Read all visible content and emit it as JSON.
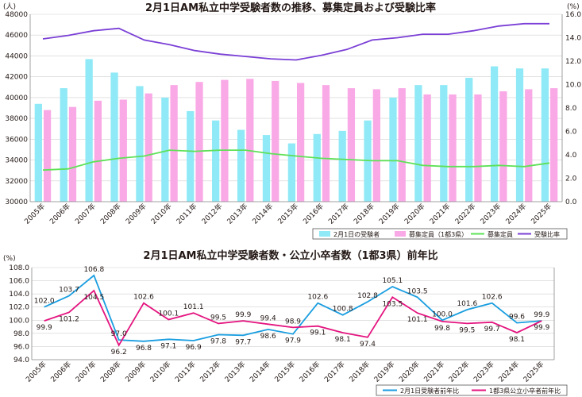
{
  "chart_data": [
    {
      "type": "bar",
      "title": "2月1日AM私立中学受験者数の推移、募集定員および受験比率",
      "y_unit_left": "(人)",
      "y_unit_right": "(%)",
      "categories": [
        "2005年",
        "2006年",
        "2007年",
        "2008年",
        "2009年",
        "2010年",
        "2011年",
        "2012年",
        "2013年",
        "2014年",
        "2015年",
        "2016年",
        "2017年",
        "2018年",
        "2019年",
        "2020年",
        "2021年",
        "2022年",
        "2023年",
        "2024年",
        "2025年"
      ],
      "left_ylim": [
        30000,
        48000
      ],
      "left_yticks": [
        "30000",
        "32000",
        "34000",
        "36000",
        "38000",
        "40000",
        "42000",
        "44000",
        "46000",
        "48000"
      ],
      "right_ylim": [
        0,
        16
      ],
      "right_yticks": [
        "0.0",
        "2.0",
        "4.0",
        "6.0",
        "8.0",
        "10.0",
        "12.0",
        "14.0",
        "16.0"
      ],
      "series": [
        {
          "name": "2月1日の受験者",
          "kind": "bar",
          "axis": "left",
          "color": "#8fe9f6",
          "values": [
            39400,
            40900,
            43700,
            42400,
            41100,
            40000,
            38700,
            37800,
            36900,
            36400,
            35600,
            36500,
            36800,
            37800,
            40000,
            41200,
            41200,
            41900,
            43000,
            42800,
            42800
          ]
        },
        {
          "name": "募集定員（1都3県）",
          "kind": "bar",
          "axis": "left",
          "color": "#f9a9e6",
          "values": [
            38800,
            39100,
            39700,
            39800,
            40400,
            41200,
            41500,
            41700,
            41800,
            41600,
            41400,
            41200,
            40900,
            40800,
            40900,
            40300,
            40300,
            40300,
            40600,
            40800,
            40900
          ]
        },
        {
          "name": "募集定員",
          "kind": "line",
          "axis": "right",
          "color": "#5ee157",
          "values": [
            2.7,
            2.8,
            3.4,
            3.7,
            3.9,
            4.4,
            4.3,
            4.4,
            4.4,
            4.1,
            3.9,
            3.7,
            3.6,
            3.5,
            3.5,
            3.1,
            3.0,
            3.0,
            3.1,
            3.0,
            3.3
          ]
        },
        {
          "name": "受験比率",
          "kind": "line",
          "axis": "right",
          "color": "#7a3fd6",
          "values": [
            13.9,
            14.2,
            14.6,
            14.8,
            13.8,
            13.4,
            12.9,
            12.6,
            12.4,
            12.2,
            12.1,
            12.5,
            13.0,
            13.8,
            14.0,
            14.3,
            14.3,
            14.6,
            15.0,
            15.2,
            15.2
          ]
        }
      ]
    },
    {
      "type": "line",
      "title": "2月1日AM私立中学受験者数・公立小卒者数（1都3県）前年比",
      "y_unit_left": "(%)",
      "categories": [
        "2005年",
        "2006年",
        "2007年",
        "2008年",
        "2009年",
        "2010年",
        "2011年",
        "2012年",
        "2013年",
        "2014年",
        "2015年",
        "2016年",
        "2017年",
        "2018年",
        "2019年",
        "2020年",
        "2021年",
        "2022年",
        "2023年",
        "2024年",
        "2025年"
      ],
      "ylim": [
        94,
        108
      ],
      "yticks": [
        "94.0",
        "96.0",
        "98.0",
        "100.0",
        "102.0",
        "104.0",
        "106.0",
        "108.0"
      ],
      "series": [
        {
          "name": "2月1日受験者前年比",
          "color": "#1a9ee0",
          "values": [
            102.0,
            103.7,
            106.8,
            97.0,
            96.8,
            97.1,
            96.9,
            97.8,
            97.7,
            98.6,
            97.9,
            102.6,
            100.8,
            102.8,
            105.1,
            103.5,
            100.0,
            101.6,
            102.6,
            99.6,
            99.9
          ],
          "labels": [
            "102.0",
            "103.7",
            "106.8",
            "97.0",
            "96.8",
            "97.1",
            "96.9",
            "97.8",
            "97.7",
            "98.6",
            "97.9",
            "102.6",
            "100.8",
            "102.8",
            "105.1",
            "103.5",
            "100.0",
            "101.6",
            "102.6",
            "99.6",
            "99.9"
          ]
        },
        {
          "name": "1都3県公立小卒者前年比",
          "color": "#e4147f",
          "values": [
            99.9,
            101.2,
            104.5,
            96.2,
            102.6,
            100.1,
            101.1,
            99.5,
            99.9,
            99.4,
            98.9,
            99.1,
            98.1,
            97.4,
            103.5,
            101.1,
            99.8,
            99.5,
            99.7,
            98.1,
            99.9
          ],
          "labels": [
            "99.9",
            "101.2",
            "104.5",
            "96.2",
            "102.6",
            "100.1",
            "101.1",
            "99.5",
            "99.9",
            "99.4",
            "98.9",
            "99.1",
            "98.1",
            "97.4",
            "103.5",
            "101.1",
            "99.8",
            "99.5",
            "99.7",
            "98.1",
            "99.9"
          ]
        }
      ]
    }
  ]
}
